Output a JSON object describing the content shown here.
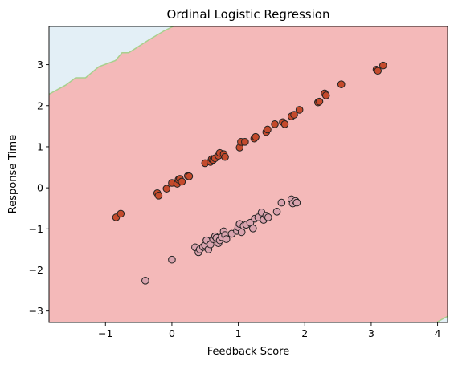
{
  "chart_data": {
    "type": "scatter",
    "title": "Ordinal Logistic Regression",
    "xlabel": "Feedback Score",
    "ylabel": "Response Time",
    "xlim": [
      -1.85,
      4.15
    ],
    "ylim": [
      -3.28,
      3.93
    ],
    "xticks": [
      -1,
      0,
      1,
      2,
      3,
      4
    ],
    "yticks": [
      -3,
      -2,
      -1,
      0,
      1,
      2,
      3
    ],
    "xtick_labels": [
      "−1",
      "0",
      "1",
      "2",
      "3",
      "4"
    ],
    "ytick_labels": [
      "−3",
      "−2",
      "−1",
      "0",
      "1",
      "2",
      "3"
    ],
    "grid": false,
    "background_regions": [
      {
        "class": "upper",
        "color": "#e3eff6"
      },
      {
        "class": "main",
        "color": "#f4b9b9"
      },
      {
        "class": "lower-corner",
        "color": "#e3eff6"
      }
    ],
    "decision_boundary": {
      "color": "#a8d08d",
      "upper": [
        [
          -1.85,
          2.28
        ],
        [
          -1.6,
          2.5
        ],
        [
          -1.45,
          2.68
        ],
        [
          -1.3,
          2.68
        ],
        [
          -1.1,
          2.95
        ],
        [
          -0.85,
          3.1
        ],
        [
          -0.75,
          3.29
        ],
        [
          -0.65,
          3.29
        ],
        [
          -0.35,
          3.6
        ],
        [
          -0.12,
          3.82
        ],
        [
          0.02,
          3.93
        ]
      ],
      "lower": [
        [
          3.98,
          -3.28
        ],
        [
          4.15,
          -3.13
        ]
      ]
    },
    "series": [
      {
        "color": "#c44a2c",
        "points": [
          [
            -0.84,
            -0.72
          ],
          [
            -0.77,
            -0.63
          ],
          [
            -0.22,
            -0.13
          ],
          [
            -0.2,
            -0.19
          ],
          [
            -0.08,
            -0.02
          ],
          [
            0.0,
            0.12
          ],
          [
            0.08,
            0.1
          ],
          [
            0.1,
            0.2
          ],
          [
            0.12,
            0.22
          ],
          [
            0.15,
            0.15
          ],
          [
            0.24,
            0.29
          ],
          [
            0.26,
            0.28
          ],
          [
            0.5,
            0.6
          ],
          [
            0.58,
            0.63
          ],
          [
            0.6,
            0.7
          ],
          [
            0.62,
            0.68
          ],
          [
            0.65,
            0.72
          ],
          [
            0.7,
            0.78
          ],
          [
            0.72,
            0.85
          ],
          [
            0.78,
            0.82
          ],
          [
            0.8,
            0.75
          ],
          [
            1.02,
            0.98
          ],
          [
            1.04,
            1.12
          ],
          [
            1.1,
            1.12
          ],
          [
            1.24,
            1.2
          ],
          [
            1.26,
            1.24
          ],
          [
            1.42,
            1.36
          ],
          [
            1.44,
            1.42
          ],
          [
            1.55,
            1.55
          ],
          [
            1.67,
            1.6
          ],
          [
            1.7,
            1.55
          ],
          [
            1.8,
            1.74
          ],
          [
            1.84,
            1.78
          ],
          [
            1.92,
            1.9
          ],
          [
            2.2,
            2.08
          ],
          [
            2.22,
            2.1
          ],
          [
            2.3,
            2.3
          ],
          [
            2.32,
            2.25
          ],
          [
            2.55,
            2.52
          ],
          [
            3.08,
            2.88
          ],
          [
            3.1,
            2.85
          ],
          [
            3.18,
            2.98
          ]
        ]
      },
      {
        "color": "#d9a3ae",
        "points": [
          [
            -0.4,
            -2.26
          ],
          [
            0.0,
            -1.75
          ],
          [
            0.35,
            -1.45
          ],
          [
            0.4,
            -1.57
          ],
          [
            0.42,
            -1.5
          ],
          [
            0.47,
            -1.44
          ],
          [
            0.5,
            -1.4
          ],
          [
            0.52,
            -1.28
          ],
          [
            0.55,
            -1.5
          ],
          [
            0.58,
            -1.38
          ],
          [
            0.62,
            -1.25
          ],
          [
            0.65,
            -1.18
          ],
          [
            0.67,
            -1.22
          ],
          [
            0.7,
            -1.35
          ],
          [
            0.72,
            -1.28
          ],
          [
            0.75,
            -1.2
          ],
          [
            0.78,
            -1.06
          ],
          [
            0.8,
            -1.15
          ],
          [
            0.82,
            -1.25
          ],
          [
            0.9,
            -1.12
          ],
          [
            0.98,
            -1.05
          ],
          [
            1.0,
            -0.96
          ],
          [
            1.02,
            -0.88
          ],
          [
            1.05,
            -1.08
          ],
          [
            1.08,
            -0.93
          ],
          [
            1.12,
            -0.9
          ],
          [
            1.18,
            -0.85
          ],
          [
            1.22,
            -0.99
          ],
          [
            1.25,
            -0.75
          ],
          [
            1.3,
            -0.72
          ],
          [
            1.35,
            -0.6
          ],
          [
            1.38,
            -0.78
          ],
          [
            1.42,
            -0.68
          ],
          [
            1.45,
            -0.72
          ],
          [
            1.58,
            -0.58
          ],
          [
            1.65,
            -0.36
          ],
          [
            1.8,
            -0.28
          ],
          [
            1.82,
            -0.38
          ],
          [
            1.86,
            -0.32
          ],
          [
            1.88,
            -0.36
          ]
        ]
      }
    ]
  }
}
